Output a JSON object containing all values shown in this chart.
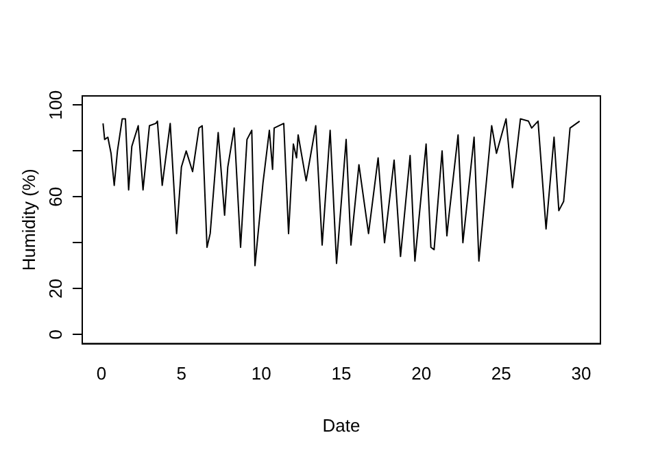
{
  "chart_data": {
    "type": "line",
    "xlabel": "Date",
    "ylabel": "Humidity (%)",
    "x": [
      0.1,
      0.2,
      0.4,
      0.6,
      0.8,
      1.0,
      1.3,
      1.5,
      1.7,
      1.9,
      2.3,
      2.6,
      3.0,
      3.4,
      3.5,
      3.8,
      4.3,
      4.7,
      5.0,
      5.3,
      5.7,
      6.1,
      6.3,
      6.6,
      6.8,
      7.3,
      7.7,
      7.9,
      8.3,
      8.7,
      9.1,
      9.4,
      9.6,
      10.1,
      10.5,
      10.7,
      10.8,
      11.4,
      11.7,
      12.0,
      12.2,
      12.3,
      12.8,
      13.4,
      13.8,
      14.3,
      14.7,
      15.3,
      15.6,
      16.1,
      16.7,
      17.3,
      17.7,
      18.3,
      18.7,
      19.3,
      19.6,
      20.3,
      20.6,
      20.8,
      21.3,
      21.6,
      21.7,
      22.3,
      22.6,
      23.3,
      23.6,
      24.4,
      24.7,
      25.3,
      25.7,
      26.2,
      26.7,
      26.9,
      27.3,
      27.8,
      28.3,
      28.6,
      28.9,
      29.3,
      29.9
    ],
    "values": [
      92,
      85,
      86,
      79,
      65,
      80,
      94,
      94,
      63,
      82,
      91,
      63,
      91,
      92,
      93,
      65,
      92,
      44,
      73,
      80,
      71,
      90,
      91,
      38,
      44,
      88,
      52,
      73,
      90,
      38,
      85,
      89,
      30,
      66,
      89,
      72,
      90,
      92,
      44,
      83,
      77,
      87,
      67,
      91,
      39,
      89,
      31,
      85,
      39,
      74,
      44,
      77,
      40,
      76,
      34,
      78,
      32,
      83,
      38,
      37,
      80,
      43,
      50,
      87,
      40,
      86,
      32,
      91,
      79,
      94,
      64,
      94,
      93,
      90,
      93,
      46,
      86,
      54,
      58,
      90,
      93
    ],
    "color": "#000000",
    "xlim": [
      -1.2,
      31.2
    ],
    "xticks": [
      0,
      5,
      10,
      15,
      20,
      25,
      30
    ],
    "ylim": [
      -4,
      104
    ],
    "yticks": [
      0,
      20,
      {
        "value": 40,
        "label": null
      },
      60,
      {
        "value": 80,
        "label": null
      },
      100
    ],
    "grid": false,
    "legend": false,
    "marker": "none",
    "line_style": "solid"
  }
}
